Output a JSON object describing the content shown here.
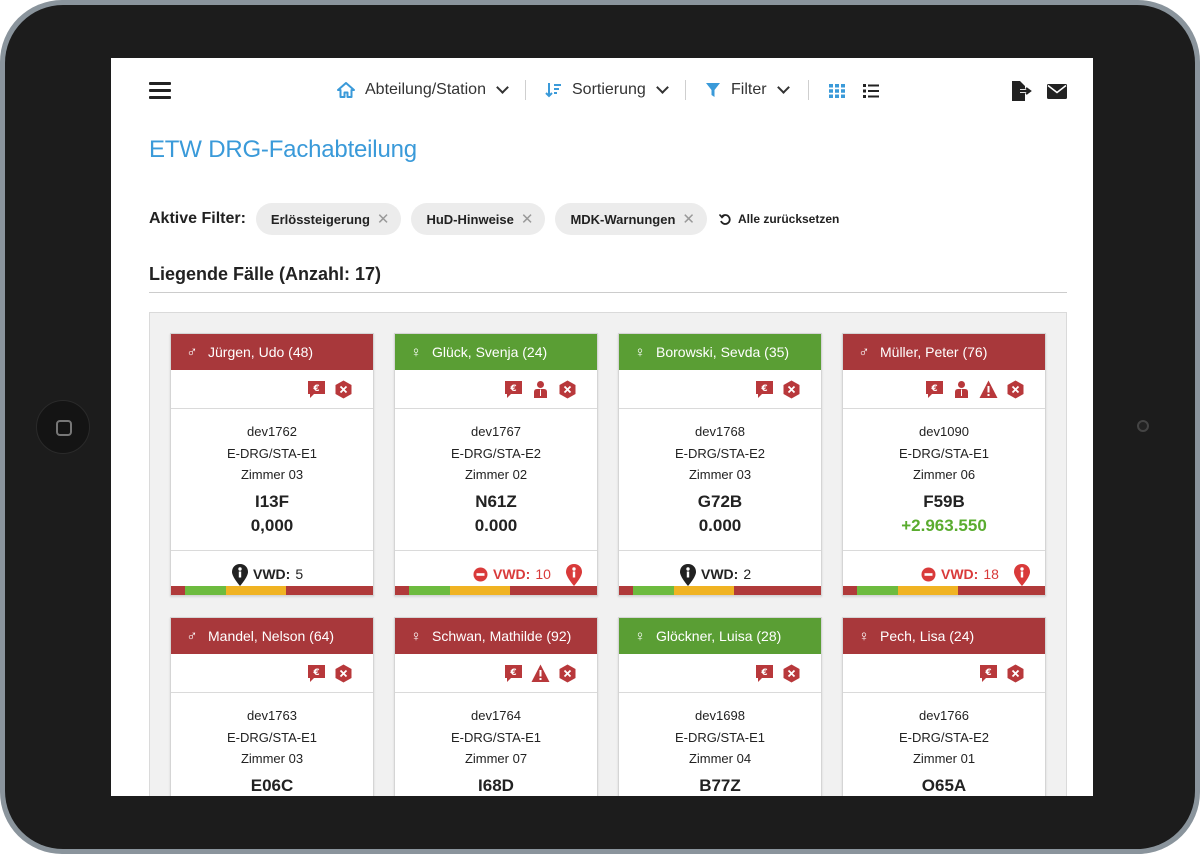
{
  "toolbar": {
    "department": "Abteilung/Station",
    "sort": "Sortierung",
    "filter": "Filter"
  },
  "page_title": "ETW DRG-Fachabteilung",
  "filters": {
    "label": "Aktive Filter:",
    "chips": [
      "Erlössteigerung",
      "HuD-Hinweise",
      "MDK-Warnungen"
    ],
    "reset": "Alle zurücksetzen"
  },
  "section_title": "Liegende Fälle (Anzahl: 17)",
  "cards": [
    {
      "name": "Jürgen, Udo (48)",
      "gender": "♂",
      "color": "red",
      "icons": [
        "euro",
        "hex-x"
      ],
      "id": "dev1762",
      "ward": "E-DRG/STA-E1",
      "room": "Zimmer 03",
      "drg": "I13F",
      "value": "0,000",
      "vwd_label": "VWD:",
      "vwd": "5",
      "vwd_alert": false
    },
    {
      "name": "Glück, Svenja (24)",
      "gender": "♀",
      "color": "green",
      "icons": [
        "euro",
        "person",
        "hex-x"
      ],
      "id": "dev1767",
      "ward": "E-DRG/STA-E2",
      "room": "Zimmer 02",
      "drg": "N61Z",
      "value": "0.000",
      "vwd_label": "VWD:",
      "vwd": "10",
      "vwd_alert": true
    },
    {
      "name": "Borowski, Sevda (35)",
      "gender": "♀",
      "color": "green",
      "icons": [
        "euro",
        "hex-x"
      ],
      "id": "dev1768",
      "ward": "E-DRG/STA-E2",
      "room": "Zimmer 03",
      "drg": "G72B",
      "value": "0.000",
      "vwd_label": "VWD:",
      "vwd": "2",
      "vwd_alert": false
    },
    {
      "name": "Müller, Peter (76)",
      "gender": "♂",
      "color": "red",
      "icons": [
        "euro",
        "person",
        "warning",
        "hex-x"
      ],
      "id": "dev1090",
      "ward": "E-DRG/STA-E1",
      "room": "Zimmer 06",
      "drg": "F59B",
      "value": "+2.963.550",
      "vwd_label": "VWD:",
      "vwd": "18",
      "vwd_alert": true
    },
    {
      "name": "Mandel, Nelson (64)",
      "gender": "♂",
      "color": "red",
      "icons": [
        "euro",
        "hex-x"
      ],
      "id": "dev1763",
      "ward": "E-DRG/STA-E1",
      "room": "Zimmer 03",
      "drg": "E06C",
      "value": "",
      "vwd_label": "",
      "vwd": "",
      "vwd_alert": false
    },
    {
      "name": "Schwan, Mathilde (92)",
      "gender": "♀",
      "color": "red",
      "icons": [
        "euro",
        "warning",
        "hex-x"
      ],
      "id": "dev1764",
      "ward": "E-DRG/STA-E1",
      "room": "Zimmer 07",
      "drg": "I68D",
      "value": "",
      "vwd_label": "",
      "vwd": "",
      "vwd_alert": false
    },
    {
      "name": "Glöckner, Luisa (28)",
      "gender": "♀",
      "color": "green",
      "icons": [
        "euro",
        "hex-x"
      ],
      "id": "dev1698",
      "ward": "E-DRG/STA-E1",
      "room": "Zimmer 04",
      "drg": "B77Z",
      "value": "",
      "vwd_label": "",
      "vwd": "",
      "vwd_alert": false
    },
    {
      "name": "Pech, Lisa (24)",
      "gender": "♀",
      "color": "red",
      "icons": [
        "euro",
        "hex-x"
      ],
      "id": "dev1766",
      "ward": "E-DRG/STA-E2",
      "room": "Zimmer 01",
      "drg": "O65A",
      "value": "",
      "vwd_label": "",
      "vwd": "",
      "vwd_alert": false
    }
  ],
  "colors": {
    "accent": "#3a9ad9",
    "header_red": "#a8383b",
    "header_green": "#5a9e34",
    "icon_red": "#b8383b",
    "bar_red": "#b03a3a",
    "bar_green": "#6dbb3f",
    "bar_yellow": "#f0b323",
    "positive": "#5aac2f"
  }
}
